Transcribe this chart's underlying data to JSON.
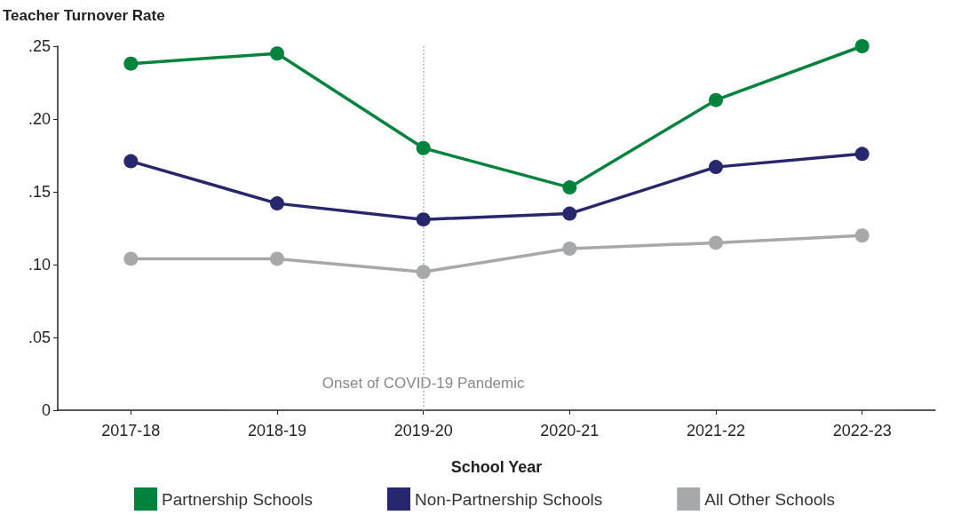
{
  "chart_data": {
    "type": "line",
    "xlabel": "School Year",
    "ylabel": "Teacher Turnover Rate",
    "categories": [
      "2017-18",
      "2018-19",
      "2019-20",
      "2020-21",
      "2021-22",
      "2022-23"
    ],
    "series": [
      {
        "name": "Partnership Schools",
        "color": "#00843d",
        "values": [
          0.238,
          0.245,
          0.18,
          0.153,
          0.213,
          0.25
        ]
      },
      {
        "name": "Non-Partnership Schools",
        "color": "#27276e",
        "values": [
          0.171,
          0.142,
          0.131,
          0.135,
          0.167,
          0.176
        ]
      },
      {
        "name": "All Other Schools",
        "color": "#a7a8aa",
        "values": [
          0.104,
          0.104,
          0.095,
          0.111,
          0.115,
          0.12
        ]
      }
    ],
    "ylim": [
      0,
      0.25
    ],
    "yticks": [
      0,
      {
        "value": 0.05,
        "label": ".05"
      },
      {
        "value": 0.1,
        "label": ".10"
      },
      {
        "value": 0.15,
        "label": ".15"
      },
      {
        "value": 0.2,
        "label": ".20"
      },
      {
        "value": 0.25,
        "label": ".25"
      }
    ],
    "ref_lines": [
      {
        "axis": "x",
        "value": "2019-20",
        "label": "Onset of COVID-19 Pandemic",
        "color": "#c8c8c8",
        "line_style": "dotted"
      }
    ],
    "grid": false,
    "legend": "bottom",
    "marker": "circle",
    "line_style": "solid"
  }
}
